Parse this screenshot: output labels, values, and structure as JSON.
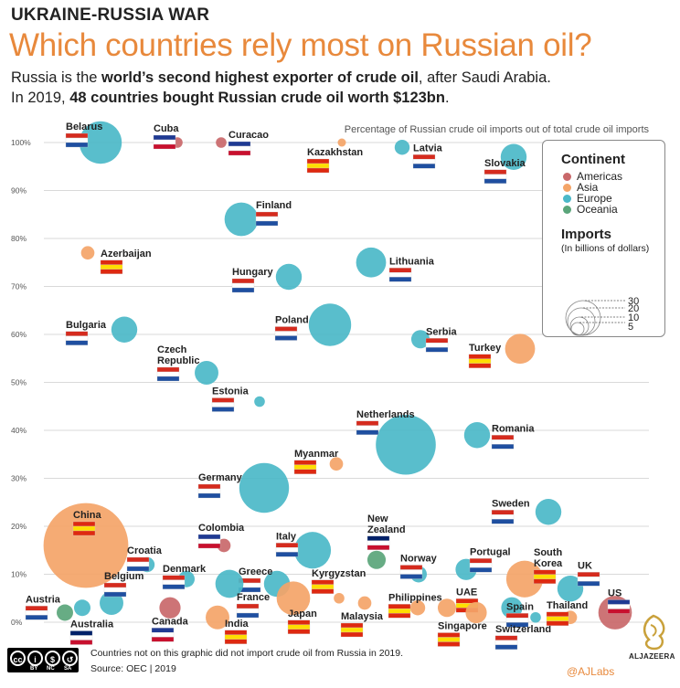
{
  "header": {
    "kicker": "UKRAINE-RUSSIA WAR",
    "title": "Which countries rely most on Russian oil?",
    "subtitle1_pre": "Russia is the ",
    "subtitle1_bold": "world’s second highest exporter of crude oil",
    "subtitle1_post": ", after Saudi Arabia.",
    "subtitle2_pre": "In 2019, ",
    "subtitle2_bold": "48 countries bought Russian crude oil worth $123bn",
    "subtitle2_post": "."
  },
  "colors": {
    "Americas": "#c9686a",
    "Asia": "#f4a468",
    "Europe": "#4bb8c8",
    "Oceania": "#5aa57a",
    "title": "#e8893c",
    "grid": "#d9d9d9"
  },
  "legend": {
    "continent_title": "Continent",
    "continents": [
      "Americas",
      "Asia",
      "Europe",
      "Oceania"
    ],
    "imports_title": "Imports",
    "imports_sub": "(In billions of dollars)",
    "size_values": [
      30,
      20,
      10,
      5
    ],
    "size_labels": [
      "30",
      "20",
      "10",
      "5"
    ]
  },
  "chart_data": {
    "type": "scatter",
    "title": "Percentage of Russian crude oil imports out of total crude oil imports",
    "ylim": [
      0,
      100
    ],
    "yticks": [
      "0%",
      "10%",
      "20%",
      "30%",
      "40%",
      "50%",
      "60%",
      "70%",
      "80%",
      "90%",
      "100%"
    ],
    "points": [
      {
        "country": "Belarus",
        "continent": "Europe",
        "y": 100,
        "size": 8
      },
      {
        "country": "Cuba",
        "continent": "Americas",
        "y": 100,
        "size": 0.5
      },
      {
        "country": "Curacao",
        "continent": "Americas",
        "y": 100,
        "size": 0.5
      },
      {
        "country": "Kazakhstan",
        "continent": "Asia",
        "y": 100,
        "size": 0.3
      },
      {
        "country": "Latvia",
        "continent": "Europe",
        "y": 99,
        "size": 1
      },
      {
        "country": "Slovakia",
        "continent": "Europe",
        "y": 97,
        "size": 3
      },
      {
        "country": "Finland",
        "continent": "Europe",
        "y": 84,
        "size": 5
      },
      {
        "country": "Azerbaijan",
        "continent": "Asia",
        "y": 77,
        "size": 0.8
      },
      {
        "country": "Lithuania",
        "continent": "Europe",
        "y": 75,
        "size": 4
      },
      {
        "country": "Hungary",
        "continent": "Europe",
        "y": 72,
        "size": 3
      },
      {
        "country": "Bulgaria",
        "continent": "Europe",
        "y": 61,
        "size": 3
      },
      {
        "country": "Poland",
        "continent": "Europe",
        "y": 62,
        "size": 8
      },
      {
        "country": "Serbia",
        "continent": "Europe",
        "y": 59,
        "size": 1.5
      },
      {
        "country": "Turkey",
        "continent": "Asia",
        "y": 57,
        "size": 4
      },
      {
        "country": "Czech Republic",
        "continent": "Europe",
        "y": 52,
        "size": 2.5
      },
      {
        "country": "Estonia",
        "continent": "Europe",
        "y": 46,
        "size": 0.5
      },
      {
        "country": "Netherlands",
        "continent": "Europe",
        "y": 37,
        "size": 16
      },
      {
        "country": "Romania",
        "continent": "Europe",
        "y": 39,
        "size": 3
      },
      {
        "country": "Myanmar",
        "continent": "Asia",
        "y": 33,
        "size": 0.8
      },
      {
        "country": "Germany",
        "continent": "Europe",
        "y": 28,
        "size": 11
      },
      {
        "country": "Sweden",
        "continent": "Europe",
        "y": 23,
        "size": 3
      },
      {
        "country": "China",
        "continent": "Asia",
        "y": 16,
        "size": 32
      },
      {
        "country": "Colombia",
        "continent": "Americas",
        "y": 16,
        "size": 0.8
      },
      {
        "country": "New Zealand",
        "continent": "Oceania",
        "y": 13,
        "size": 1.5
      },
      {
        "country": "Italy",
        "continent": "Europe",
        "y": 15,
        "size": 6
      },
      {
        "country": "Croatia",
        "continent": "Europe",
        "y": 12,
        "size": 1
      },
      {
        "country": "Denmark",
        "continent": "Europe",
        "y": 9,
        "size": 1.2
      },
      {
        "country": "Greece",
        "continent": "Europe",
        "y": 8,
        "size": 3
      },
      {
        "country": "Norway",
        "continent": "Europe",
        "y": 10,
        "size": 1.2
      },
      {
        "country": "Portugal",
        "continent": "Europe",
        "y": 11,
        "size": 2
      },
      {
        "country": "South Korea",
        "continent": "Asia",
        "y": 9,
        "size": 6
      },
      {
        "country": "UK",
        "continent": "Europe",
        "y": 7,
        "size": 3
      },
      {
        "country": "US",
        "continent": "Americas",
        "y": 2,
        "size": 5
      },
      {
        "country": "Austria",
        "continent": "Europe",
        "y": 3,
        "size": 1.2
      },
      {
        "country": "Australia",
        "continent": "Oceania",
        "y": 2,
        "size": 1.2
      },
      {
        "country": "Belgium",
        "continent": "Europe",
        "y": 4,
        "size": 2.5
      },
      {
        "country": "Canada",
        "continent": "Americas",
        "y": 3,
        "size": 2
      },
      {
        "country": "India",
        "continent": "Asia",
        "y": 1,
        "size": 2.5
      },
      {
        "country": "France",
        "continent": "Europe",
        "y": 8,
        "size": 3.5
      },
      {
        "country": "Japan",
        "continent": "Asia",
        "y": 5,
        "size": 5
      },
      {
        "country": "Kyrgyzstan",
        "continent": "Asia",
        "y": 5,
        "size": 0.5
      },
      {
        "country": "Malaysia",
        "continent": "Asia",
        "y": 4,
        "size": 0.8
      },
      {
        "country": "Philippines",
        "continent": "Asia",
        "y": 3,
        "size": 1
      },
      {
        "country": "UAE",
        "continent": "Asia",
        "y": 3,
        "size": 1.5
      },
      {
        "country": "Singapore",
        "continent": "Asia",
        "y": 2,
        "size": 2
      },
      {
        "country": "Spain",
        "continent": "Europe",
        "y": 3,
        "size": 2
      },
      {
        "country": "Switzerland",
        "continent": "Europe",
        "y": 1,
        "size": 0.5
      },
      {
        "country": "Thailand",
        "continent": "Asia",
        "y": 1,
        "size": 0.8
      }
    ]
  },
  "footer": {
    "note": "Countries not on this graphic did not import crude oil from Russia in 2019.",
    "source": "Source: OEC | 2019",
    "credit": "@AJLabs",
    "brand": "ALJAZEERA",
    "cc_labels": [
      "BY",
      "NC",
      "SA"
    ]
  }
}
